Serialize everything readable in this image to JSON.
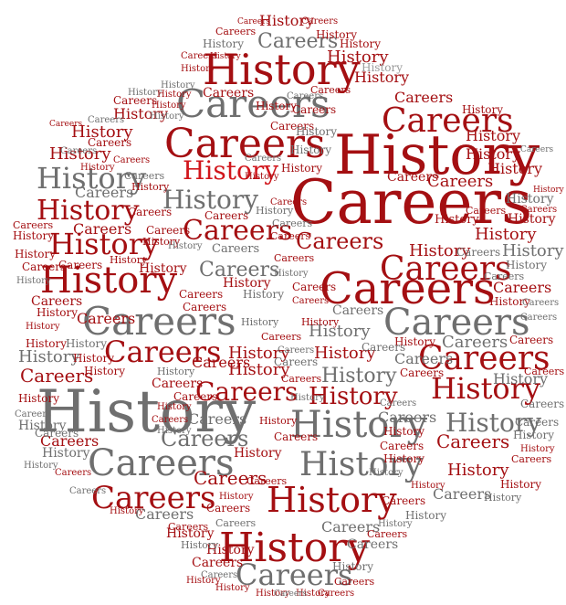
{
  "word_cloud": {
    "words": [
      "History",
      "Careers"
    ],
    "colors": {
      "dark_red": "#a40f12",
      "red": "#d1161c",
      "gray": "#6f6f6f",
      "light_gray": "#9a9a9a"
    }
  }
}
